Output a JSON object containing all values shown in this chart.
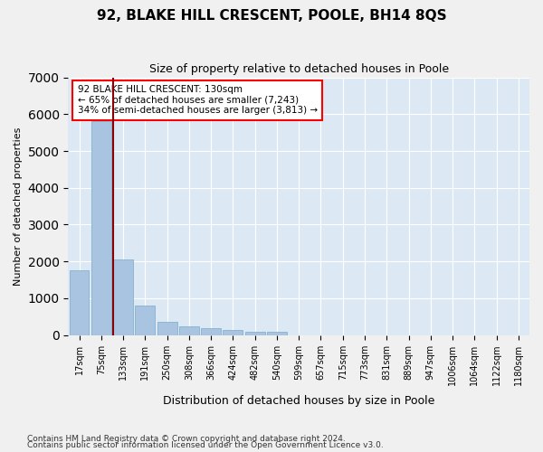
{
  "title": "92, BLAKE HILL CRESCENT, POOLE, BH14 8QS",
  "subtitle": "Size of property relative to detached houses in Poole",
  "xlabel": "Distribution of detached houses by size in Poole",
  "ylabel": "Number of detached properties",
  "bar_color": "#a8c4e0",
  "bar_edge_color": "#7aaac8",
  "background_color": "#dce9f5",
  "grid_color": "#ffffff",
  "footnote1": "Contains HM Land Registry data © Crown copyright and database right 2024.",
  "footnote2": "Contains public sector information licensed under the Open Government Licence v3.0.",
  "bin_labels": [
    "17sqm",
    "75sqm",
    "133sqm",
    "191sqm",
    "250sqm",
    "308sqm",
    "366sqm",
    "424sqm",
    "482sqm",
    "540sqm",
    "599sqm",
    "657sqm",
    "715sqm",
    "773sqm",
    "831sqm",
    "889sqm",
    "947sqm",
    "1006sqm",
    "1064sqm",
    "1122sqm",
    "1180sqm"
  ],
  "bar_values": [
    1750,
    5800,
    2050,
    800,
    350,
    240,
    195,
    130,
    90,
    90,
    0,
    0,
    0,
    0,
    0,
    0,
    0,
    0,
    0,
    0,
    0
  ],
  "property_line_label": "92 BLAKE HILL CRESCENT: 130sqm",
  "annotation_line1": "← 65% of detached houses are smaller (7,243)",
  "annotation_line2": "34% of semi-detached houses are larger (3,813) →",
  "ylim": [
    0,
    7000
  ],
  "yticks": [
    0,
    1000,
    2000,
    3000,
    4000,
    5000,
    6000,
    7000
  ],
  "property_line_bin_index": 2
}
